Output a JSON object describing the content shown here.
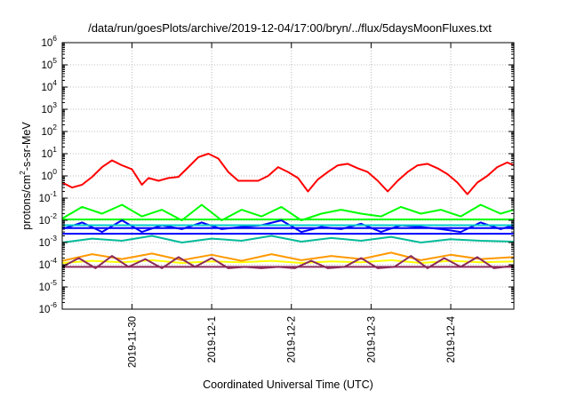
{
  "chart_data": {
    "type": "line",
    "title": "/data/run/goesPlots/archive/2019-12-04/17:00/bryn/../flux/5daysMoonFluxes.txt",
    "xlabel": "Coordinated Universal Time (UTC)",
    "ylabel_parts": {
      "base": "protons/cm",
      "sup": "2",
      "rest": "-s-sr-MeV"
    },
    "y_scale": "log",
    "ylim": [
      1e-06,
      1000000.0
    ],
    "y_ticks": [
      {
        "exp": "-6"
      },
      {
        "exp": "-5"
      },
      {
        "exp": "-4"
      },
      {
        "exp": "-3"
      },
      {
        "exp": "-2"
      },
      {
        "exp": "-1"
      },
      {
        "exp": "0"
      },
      {
        "exp": "1"
      },
      {
        "exp": "2"
      },
      {
        "exp": "3"
      },
      {
        "exp": "4"
      },
      {
        "exp": "5"
      },
      {
        "exp": "6"
      }
    ],
    "y_tick_base": "10",
    "xlim": [
      "2019-11-29T03:00",
      "2019-12-04T19:00"
    ],
    "x_ticks": [
      "2019-11-30",
      "2019-12-1",
      "2019-12-2",
      "2019-12-3",
      "2019-12-4"
    ],
    "grid": true,
    "series": [
      {
        "color": "#ff0000",
        "x": [
          "2019-11-29T03:00",
          "2019-11-29T06:00",
          "2019-11-29T09:00",
          "2019-11-29T12:00",
          "2019-11-29T15:00",
          "2019-11-29T18:00",
          "2019-11-29T21:00",
          "2019-11-30T00:00",
          "2019-11-30T03:00",
          "2019-11-30T05:00",
          "2019-11-30T08:00",
          "2019-11-30T11:00",
          "2019-11-30T14:00",
          "2019-11-30T17:00",
          "2019-11-30T20:00",
          "2019-11-30T23:00",
          "2019-12-01T02:00",
          "2019-12-01T05:00",
          "2019-12-01T08:00",
          "2019-12-01T11:00",
          "2019-12-01T14:00",
          "2019-12-01T17:00",
          "2019-12-01T20:00",
          "2019-12-01T23:00",
          "2019-12-02T02:00",
          "2019-12-02T05:00",
          "2019-12-02T08:00",
          "2019-12-02T11:00",
          "2019-12-02T14:00",
          "2019-12-02T17:00",
          "2019-12-02T20:00",
          "2019-12-02T23:00",
          "2019-12-03T02:00",
          "2019-12-03T05:00",
          "2019-12-03T08:00",
          "2019-12-03T11:00",
          "2019-12-03T14:00",
          "2019-12-03T17:00",
          "2019-12-03T20:00",
          "2019-12-03T23:00",
          "2019-12-04T02:00",
          "2019-12-04T05:00",
          "2019-12-04T08:00",
          "2019-12-04T11:00",
          "2019-12-04T14:00",
          "2019-12-04T17:00",
          "2019-12-04T19:00"
        ],
        "values": [
          0.5,
          0.3,
          0.4,
          0.9,
          2.5,
          5,
          3,
          2,
          0.4,
          0.8,
          0.6,
          0.8,
          0.9,
          2.5,
          7,
          10,
          6,
          1.5,
          0.6,
          0.6,
          0.6,
          1,
          2.5,
          1.5,
          0.8,
          0.2,
          0.7,
          1.5,
          3,
          3.5,
          2.2,
          1.5,
          0.6,
          0.2,
          0.6,
          1.5,
          3,
          3.5,
          2.2,
          1.2,
          0.5,
          0.15,
          0.5,
          1,
          2.5,
          4,
          3
        ]
      },
      {
        "color": "#00ff00",
        "x": [
          "2019-11-29T03:00",
          "2019-11-29T09:00",
          "2019-11-29T15:00",
          "2019-11-29T21:00",
          "2019-11-30T03:00",
          "2019-11-30T09:00",
          "2019-11-30T15:00",
          "2019-11-30T21:00",
          "2019-12-01T03:00",
          "2019-12-01T09:00",
          "2019-12-01T15:00",
          "2019-12-01T21:00",
          "2019-12-02T03:00",
          "2019-12-02T09:00",
          "2019-12-02T15:00",
          "2019-12-02T21:00",
          "2019-12-03T03:00",
          "2019-12-03T09:00",
          "2019-12-03T15:00",
          "2019-12-03T21:00",
          "2019-12-04T03:00",
          "2019-12-04T09:00",
          "2019-12-04T15:00",
          "2019-12-04T19:00"
        ],
        "values": [
          0.012,
          0.04,
          0.02,
          0.05,
          0.015,
          0.03,
          0.01,
          0.05,
          0.01,
          0.03,
          0.015,
          0.04,
          0.01,
          0.02,
          0.03,
          0.02,
          0.015,
          0.04,
          0.02,
          0.03,
          0.015,
          0.05,
          0.02,
          0.03
        ]
      },
      {
        "color": "#00ff00",
        "x": [
          "2019-11-29T03:00",
          "2019-12-04T19:00"
        ],
        "values": [
          0.011,
          0.011
        ]
      },
      {
        "color": "#0000ff",
        "x": [
          "2019-11-29T03:00",
          "2019-11-29T09:00",
          "2019-11-29T15:00",
          "2019-11-29T21:00",
          "2019-11-30T03:00",
          "2019-11-30T09:00",
          "2019-11-30T15:00",
          "2019-11-30T21:00",
          "2019-12-01T03:00",
          "2019-12-01T09:00",
          "2019-12-01T15:00",
          "2019-12-01T21:00",
          "2019-12-02T03:00",
          "2019-12-02T09:00",
          "2019-12-02T15:00",
          "2019-12-02T21:00",
          "2019-12-03T03:00",
          "2019-12-03T09:00",
          "2019-12-03T15:00",
          "2019-12-03T21:00",
          "2019-12-04T03:00",
          "2019-12-04T09:00",
          "2019-12-04T15:00",
          "2019-12-04T19:00"
        ],
        "values": [
          0.004,
          0.008,
          0.003,
          0.01,
          0.003,
          0.006,
          0.004,
          0.008,
          0.004,
          0.005,
          0.006,
          0.01,
          0.003,
          0.005,
          0.004,
          0.007,
          0.003,
          0.006,
          0.005,
          0.004,
          0.003,
          0.008,
          0.004,
          0.006
        ]
      },
      {
        "color": "#0000ff",
        "x": [
          "2019-11-29T03:00",
          "2019-12-04T19:00"
        ],
        "values": [
          0.0045,
          0.0045
        ]
      },
      {
        "color": "#0000ff",
        "x": [
          "2019-11-29T03:00",
          "2019-12-04T19:00"
        ],
        "values": [
          0.0025,
          0.0025
        ]
      },
      {
        "color": "#00cccc",
        "x": [
          "2019-11-29T03:00",
          "2019-12-04T19:00"
        ],
        "values": [
          0.006,
          0.006
        ]
      },
      {
        "color": "#00bb99",
        "x": [
          "2019-11-29T03:00",
          "2019-11-29T12:00",
          "2019-11-29T21:00",
          "2019-11-30T06:00",
          "2019-11-30T15:00",
          "2019-12-01T00:00",
          "2019-12-01T09:00",
          "2019-12-01T18:00",
          "2019-12-02T03:00",
          "2019-12-02T12:00",
          "2019-12-02T21:00",
          "2019-12-03T06:00",
          "2019-12-03T15:00",
          "2019-12-04T00:00",
          "2019-12-04T09:00",
          "2019-12-04T19:00"
        ],
        "values": [
          0.001,
          0.0015,
          0.0012,
          0.002,
          0.001,
          0.0015,
          0.0012,
          0.002,
          0.0011,
          0.0016,
          0.0012,
          0.0018,
          0.001,
          0.0014,
          0.0012,
          0.0011
        ]
      },
      {
        "color": "#ffff00",
        "x": [
          "2019-11-29T03:00",
          "2019-11-29T12:00",
          "2019-11-29T21:00",
          "2019-11-30T06:00",
          "2019-11-30T15:00",
          "2019-12-01T00:00",
          "2019-12-01T09:00",
          "2019-12-01T18:00",
          "2019-12-02T03:00",
          "2019-12-02T12:00",
          "2019-12-02T21:00",
          "2019-12-03T06:00",
          "2019-12-03T15:00",
          "2019-12-04T00:00",
          "2019-12-04T09:00",
          "2019-12-04T19:00"
        ],
        "values": [
          0.00012,
          0.00015,
          0.00013,
          0.00016,
          0.00012,
          0.00014,
          0.00013,
          0.00015,
          0.00012,
          0.00014,
          0.00013,
          0.00016,
          0.00012,
          0.00015,
          0.00013,
          0.00014
        ]
      },
      {
        "color": "#ff9900",
        "x": [
          "2019-11-29T03:00",
          "2019-11-29T12:00",
          "2019-11-29T21:00",
          "2019-11-30T06:00",
          "2019-11-30T15:00",
          "2019-12-01T00:00",
          "2019-12-01T09:00",
          "2019-12-01T18:00",
          "2019-12-02T03:00",
          "2019-12-02T12:00",
          "2019-12-02T21:00",
          "2019-12-03T06:00",
          "2019-12-03T15:00",
          "2019-12-04T00:00",
          "2019-12-04T09:00",
          "2019-12-04T19:00"
        ],
        "values": [
          0.00015,
          0.0003,
          0.00018,
          0.00032,
          0.00016,
          0.00028,
          0.00015,
          0.0003,
          0.00016,
          0.00025,
          0.00018,
          0.00035,
          0.00016,
          0.00028,
          0.00018,
          0.00022
        ]
      },
      {
        "color": "#8b2a5a",
        "x": [
          "2019-11-29T03:00",
          "2019-11-29T08:00",
          "2019-11-29T13:00",
          "2019-11-29T18:00",
          "2019-11-29T23:00",
          "2019-11-30T04:00",
          "2019-11-30T09:00",
          "2019-11-30T14:00",
          "2019-11-30T19:00",
          "2019-12-01T00:00",
          "2019-12-01T05:00",
          "2019-12-01T10:00",
          "2019-12-01T15:00",
          "2019-12-01T20:00",
          "2019-12-02T01:00",
          "2019-12-02T06:00",
          "2019-12-02T11:00",
          "2019-12-02T16:00",
          "2019-12-02T21:00",
          "2019-12-03T02:00",
          "2019-12-03T07:00",
          "2019-12-03T12:00",
          "2019-12-03T17:00",
          "2019-12-03T22:00",
          "2019-12-04T03:00",
          "2019-12-04T08:00",
          "2019-12-04T13:00",
          "2019-12-04T19:00"
        ],
        "values": [
          8e-05,
          0.0002,
          7e-05,
          0.00025,
          8e-05,
          0.00018,
          7e-05,
          0.00022,
          8e-05,
          0.0002,
          7e-05,
          8e-05,
          7e-05,
          8e-05,
          7e-05,
          0.00015,
          7e-05,
          8e-05,
          0.0002,
          7e-05,
          8e-05,
          0.00025,
          7e-05,
          0.0002,
          8e-05,
          0.00022,
          7e-05,
          9e-05
        ]
      },
      {
        "color": "#8b2a5a",
        "x": [
          "2019-11-29T03:00",
          "2019-12-04T19:00"
        ],
        "values": [
          8e-05,
          8e-05
        ]
      }
    ]
  }
}
